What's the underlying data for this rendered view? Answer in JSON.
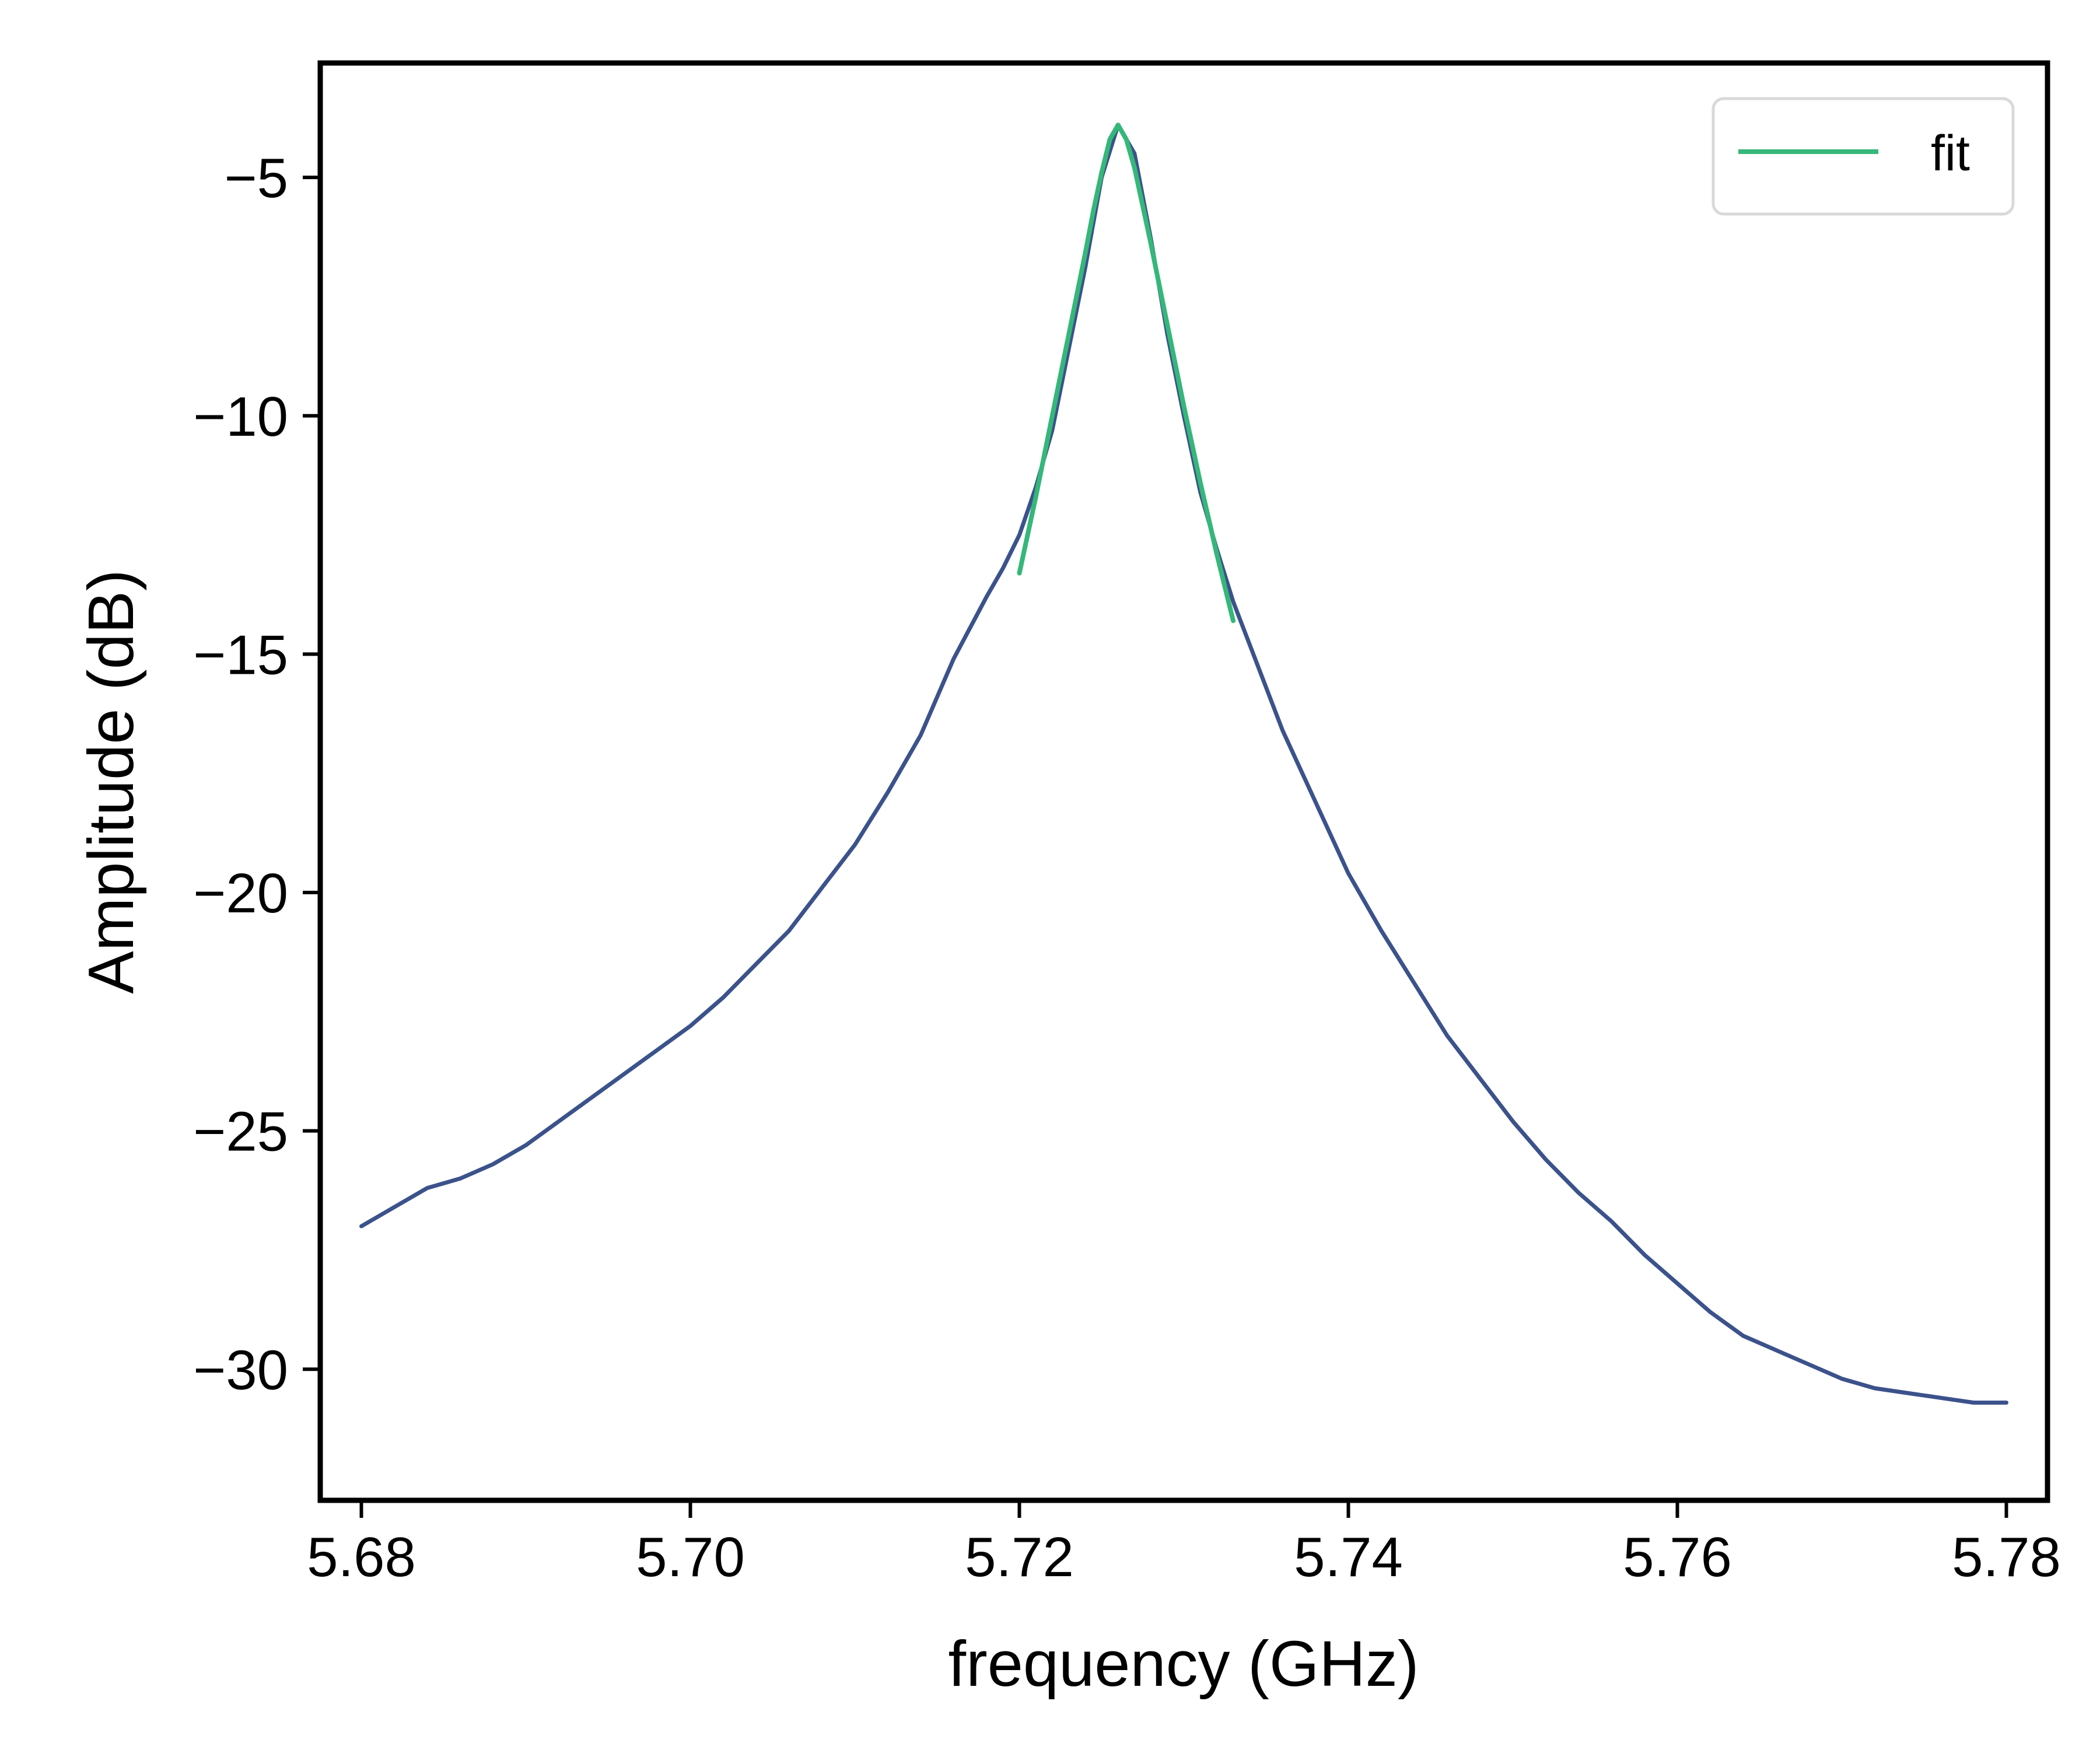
{
  "chart_data": {
    "type": "line",
    "xlabel": "frequency (GHz)",
    "ylabel": "Amplitude (dB)",
    "xlim": [
      5.6775,
      5.7825
    ],
    "ylim": [
      -32.75,
      -2.6
    ],
    "xticks": [
      5.68,
      5.7,
      5.72,
      5.74,
      5.76,
      5.78
    ],
    "xtick_labels": [
      "5.68",
      "5.70",
      "5.72",
      "5.74",
      "5.76",
      "5.78"
    ],
    "yticks": [
      -5,
      -10,
      -15,
      -20,
      -25,
      -30
    ],
    "ytick_labels": [
      "−5",
      "−10",
      "−15",
      "−20",
      "−25",
      "−30"
    ],
    "grid": false,
    "legend_position": "top-right",
    "series": [
      {
        "color": "#3b528b",
        "x": [
          5.68,
          5.682,
          5.684,
          5.686,
          5.688,
          5.69,
          5.692,
          5.694,
          5.696,
          5.698,
          5.7,
          5.702,
          5.704,
          5.706,
          5.708,
          5.71,
          5.712,
          5.714,
          5.716,
          5.718,
          5.719,
          5.72,
          5.721,
          5.722,
          5.723,
          5.724,
          5.725,
          5.726,
          5.727,
          5.728,
          5.729,
          5.73,
          5.731,
          5.732,
          5.733,
          5.734,
          5.736,
          5.738,
          5.74,
          5.742,
          5.744,
          5.746,
          5.748,
          5.75,
          5.752,
          5.754,
          5.756,
          5.758,
          5.76,
          5.762,
          5.764,
          5.766,
          5.768,
          5.77,
          5.772,
          5.774,
          5.776,
          5.778,
          5.78
        ],
        "values": [
          -27.0,
          -26.6,
          -26.2,
          -26.0,
          -25.7,
          -25.3,
          -24.8,
          -24.3,
          -23.8,
          -23.3,
          -22.8,
          -22.2,
          -21.5,
          -20.8,
          -19.9,
          -19.0,
          -17.9,
          -16.7,
          -15.1,
          -13.8,
          -13.2,
          -12.5,
          -11.5,
          -10.3,
          -8.6,
          -6.9,
          -5.0,
          -3.9,
          -4.5,
          -6.3,
          -8.3,
          -10.0,
          -11.6,
          -12.8,
          -13.9,
          -14.8,
          -16.6,
          -18.1,
          -19.6,
          -20.8,
          -21.9,
          -23.0,
          -23.9,
          -24.8,
          -25.6,
          -26.3,
          -26.9,
          -27.6,
          -28.2,
          -28.8,
          -29.3,
          -29.6,
          -29.9,
          -30.2,
          -30.4,
          -30.5,
          -30.6,
          -30.7,
          -30.7
        ]
      },
      {
        "name": "fit",
        "color": "#35b779",
        "x": [
          5.72,
          5.721,
          5.722,
          5.723,
          5.724,
          5.7245,
          5.725,
          5.7255,
          5.726,
          5.7265,
          5.727,
          5.7275,
          5.728,
          5.729,
          5.73,
          5.731,
          5.732,
          5.733
        ],
        "values": [
          -13.3,
          -11.7,
          -10.0,
          -8.3,
          -6.6,
          -5.7,
          -4.9,
          -4.2,
          -3.9,
          -4.2,
          -4.8,
          -5.6,
          -6.4,
          -8.1,
          -9.8,
          -11.4,
          -12.9,
          -14.3
        ]
      }
    ]
  }
}
